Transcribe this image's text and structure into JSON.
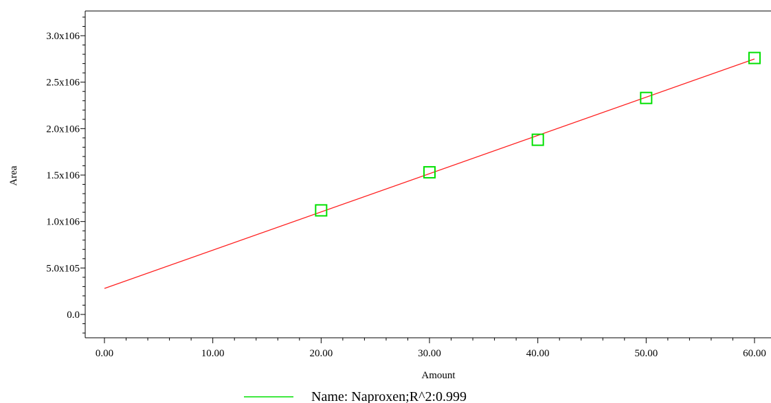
{
  "chart_data": {
    "type": "scatter",
    "xlabel": "Amount",
    "ylabel": "Area",
    "xlim": [
      -4,
      62
    ],
    "ylim": [
      -300000,
      3300000
    ],
    "x_ticks": [
      0,
      10,
      20,
      30,
      40,
      50,
      60
    ],
    "x_tick_labels": [
      "0.00",
      "10.00",
      "20.00",
      "30.00",
      "40.00",
      "50.00",
      "60.00"
    ],
    "y_ticks": [
      0,
      500000,
      1000000,
      1500000,
      2000000,
      2500000,
      3000000
    ],
    "y_tick_labels": [
      "0.0",
      "5.0x105",
      "1.0x106",
      "1.5x106",
      "2.0x106",
      "2.5x106",
      "3.0x106"
    ],
    "grid": false,
    "series": [
      {
        "kind": "points",
        "marker": "open-square",
        "color": "#00e000",
        "x": [
          20,
          30,
          40,
          50,
          60
        ],
        "y": [
          1120000,
          1530000,
          1880000,
          2330000,
          2760000
        ]
      },
      {
        "kind": "fit-line",
        "color": "#ff2020",
        "x": [
          0,
          60
        ],
        "y": [
          280000,
          2750000
        ]
      }
    ],
    "legend": {
      "placement": "bottom-center",
      "line_color": "#00e000",
      "text": "Name: Naproxen;R^2:0.999"
    }
  }
}
